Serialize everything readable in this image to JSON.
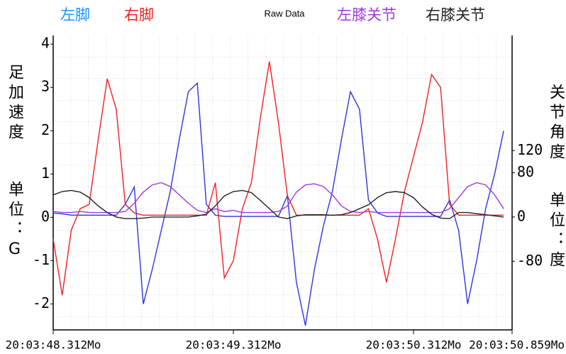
{
  "chart_data": {
    "type": "line",
    "title": "Raw Data",
    "ylabel": [
      "足加速度",
      "单位：G"
    ],
    "y2label": [
      "关节角度",
      "单位：度"
    ],
    "x": [
      0,
      0.05,
      0.1,
      0.15,
      0.2,
      0.25,
      0.3,
      0.35,
      0.4,
      0.45,
      0.5,
      0.55,
      0.6,
      0.65,
      0.7,
      0.75,
      0.8,
      0.85,
      0.9,
      0.95,
      1,
      1.05,
      1.1,
      1.15,
      1.2,
      1.25,
      1.3,
      1.35,
      1.4,
      1.45,
      1.5,
      1.55,
      1.6,
      1.65,
      1.7,
      1.75,
      1.8,
      1.85,
      1.9,
      1.95,
      2,
      2.05,
      2.1,
      2.15,
      2.2,
      2.25,
      2.3,
      2.35,
      2.4,
      2.45,
      2.5
    ],
    "xlim": [
      0,
      2.547
    ],
    "xticks": [
      {
        "value": 0,
        "label": "20:03:48.312Mo"
      },
      {
        "value": 1,
        "label": "20:03:49.312Mo"
      },
      {
        "value": 2,
        "label": "20:03:50.312Mo"
      },
      {
        "value": 2.547,
        "label": "20:03:50.859Mo"
      }
    ],
    "ylim": [
      -2.6,
      4.2
    ],
    "yticks": [
      -2,
      -1,
      0,
      1,
      2,
      3,
      4
    ],
    "y2lim": [
      -204,
      328
    ],
    "y2ticks": [
      -80,
      0,
      80,
      120
    ],
    "series": [
      {
        "name": "左脚",
        "color": "#2a35e0",
        "legend_color": "#1f8fff",
        "values": [
          0.1,
          0.08,
          0.05,
          0.05,
          0.05,
          0.05,
          0.05,
          0.05,
          0.3,
          0.7,
          -2.0,
          -1.2,
          -0.3,
          0.6,
          1.8,
          2.9,
          3.1,
          0.3,
          0.05,
          0.02,
          0.02,
          0.02,
          0.02,
          0.02,
          0.02,
          0.02,
          0.5,
          -1.5,
          -2.5,
          -1.2,
          -0.2,
          0.6,
          1.8,
          2.9,
          2.5,
          0.4,
          0.1,
          0.02,
          0.02,
          0.02,
          0.02,
          0.02,
          0.02,
          0.02,
          0.4,
          -0.3,
          -2.0,
          -1.0,
          0.2,
          1.0,
          2.0
        ]
      },
      {
        "name": "右脚",
        "color": "#f02020",
        "values": [
          -0.5,
          -1.8,
          -0.3,
          0.2,
          0.3,
          1.8,
          3.2,
          2.5,
          0.3,
          0.1,
          0.05,
          0.05,
          0.05,
          0.05,
          0.05,
          0.05,
          0.05,
          0.05,
          0.8,
          -1.4,
          -1.0,
          0.2,
          0.8,
          2.3,
          3.6,
          2.2,
          0.5,
          0.05,
          0.05,
          0.05,
          0.05,
          0.05,
          0.05,
          0.05,
          0.05,
          0.2,
          -0.5,
          -1.5,
          -0.5,
          0.6,
          1.4,
          2.2,
          3.3,
          3.0,
          0.3,
          0.05,
          0.05,
          0.05,
          0.05,
          0.05,
          0.05
        ]
      },
      {
        "name": "左膝关节",
        "color": "#a23ad8",
        "axis": "y2",
        "values": [
          10,
          8,
          8,
          10,
          8,
          8,
          8,
          8,
          10,
          25,
          45,
          58,
          62,
          55,
          40,
          25,
          12,
          8,
          15,
          10,
          12,
          8,
          8,
          8,
          8,
          10,
          20,
          45,
          58,
          60,
          55,
          40,
          20,
          10,
          8,
          10,
          8,
          8,
          8,
          8,
          8,
          8,
          8,
          8,
          15,
          35,
          55,
          62,
          58,
          40,
          15
        ]
      },
      {
        "name": "右膝关节",
        "color": "#222222",
        "axis": "y2",
        "values": [
          40,
          46,
          48,
          45,
          35,
          20,
          8,
          0,
          -3,
          -3,
          -2,
          0,
          0,
          0,
          0,
          0,
          2,
          5,
          20,
          38,
          46,
          48,
          44,
          30,
          15,
          0,
          -3,
          2,
          4,
          4,
          4,
          3,
          4,
          8,
          15,
          22,
          35,
          44,
          46,
          44,
          35,
          18,
          5,
          -2,
          -3,
          8,
          8,
          6,
          4,
          2,
          0
        ]
      }
    ]
  }
}
